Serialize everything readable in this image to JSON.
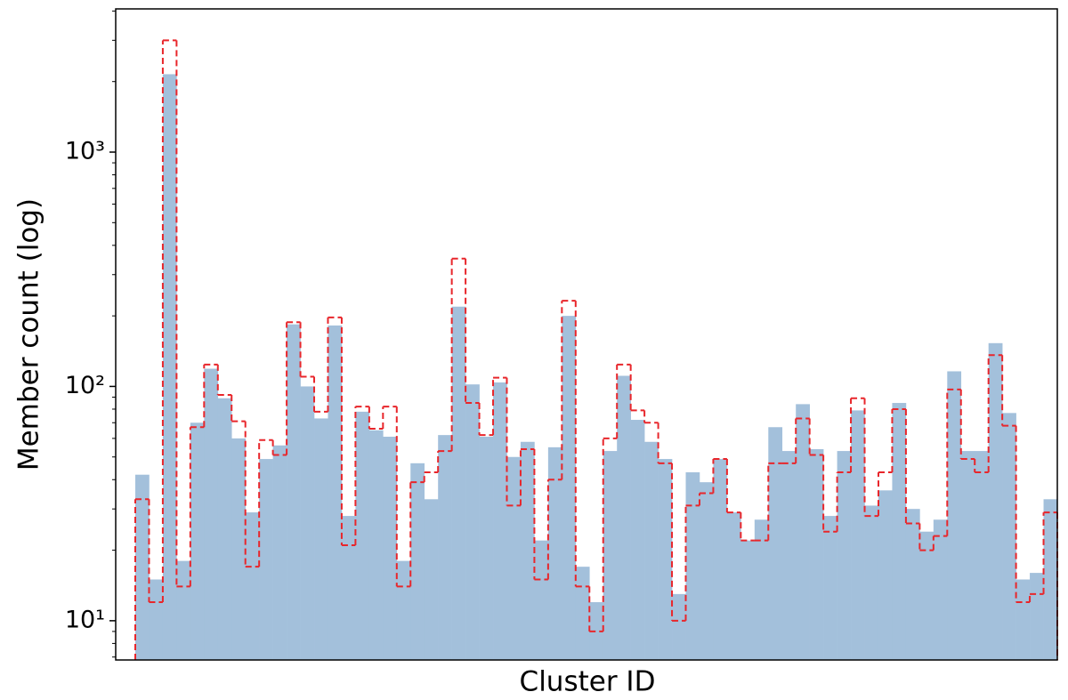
{
  "chart_data": {
    "type": "bar",
    "x_label": "Cluster ID",
    "y_label": "Member count (log)",
    "log_y": true,
    "categories": [
      null,
      null,
      null,
      null,
      null,
      null,
      null,
      null,
      null,
      null,
      null,
      null,
      null,
      null,
      null,
      null,
      null,
      null,
      null,
      null,
      null,
      null,
      null,
      null,
      null,
      null,
      null,
      null,
      null,
      null,
      null,
      null,
      null,
      null,
      null,
      null,
      null,
      null,
      null,
      null,
      null,
      null,
      null,
      null,
      null,
      null,
      null,
      null,
      null,
      null,
      null,
      null,
      null,
      null,
      null,
      null,
      null,
      null,
      null,
      null,
      null,
      null,
      null,
      null,
      null,
      null,
      null
    ],
    "series": [
      {
        "color": "#a3c0db",
        "style": "filled",
        "values": [
          42,
          15,
          2150,
          18,
          70,
          119,
          89,
          60,
          29,
          49,
          56,
          184,
          100,
          73,
          182,
          28,
          78,
          65,
          61,
          18,
          47,
          33,
          62,
          219,
          102,
          61,
          104,
          50,
          58,
          22,
          55,
          200,
          17,
          12,
          53,
          111,
          72,
          58,
          49,
          13,
          43,
          39,
          49,
          29,
          22,
          27,
          67,
          53,
          84,
          54,
          28,
          53,
          79,
          31,
          36,
          85,
          30,
          24,
          27,
          116,
          53,
          53,
          153,
          77,
          15,
          16,
          33
        ]
      },
      {
        "color": "#e8262b",
        "style": "dashed-step",
        "values": [
          33,
          12,
          3000,
          14,
          67,
          124,
          92,
          71,
          17,
          59,
          51,
          188,
          110,
          78,
          197,
          21,
          82,
          66,
          82,
          14,
          39,
          43,
          53,
          351,
          85,
          62,
          109,
          31,
          54,
          15,
          40,
          232,
          14,
          9,
          60,
          124,
          79,
          70,
          47,
          10,
          31,
          35,
          49,
          29,
          22,
          22,
          47,
          47,
          73,
          51,
          24,
          43,
          89,
          28,
          43,
          80,
          26,
          20,
          23,
          97,
          49,
          43,
          136,
          68,
          12,
          13,
          29
        ]
      }
    ],
    "ylim": [
      6.8,
      4085
    ],
    "yticks": [
      {
        "value": 10,
        "label": "10¹"
      },
      {
        "value": 100,
        "label": "10²"
      },
      {
        "value": 1000,
        "label": "10³"
      }
    ],
    "yminorticks": [
      7,
      8,
      9,
      20,
      30,
      40,
      50,
      60,
      70,
      80,
      90,
      200,
      300,
      400,
      500,
      600,
      700,
      800,
      900,
      2000,
      3000,
      4000
    ]
  }
}
